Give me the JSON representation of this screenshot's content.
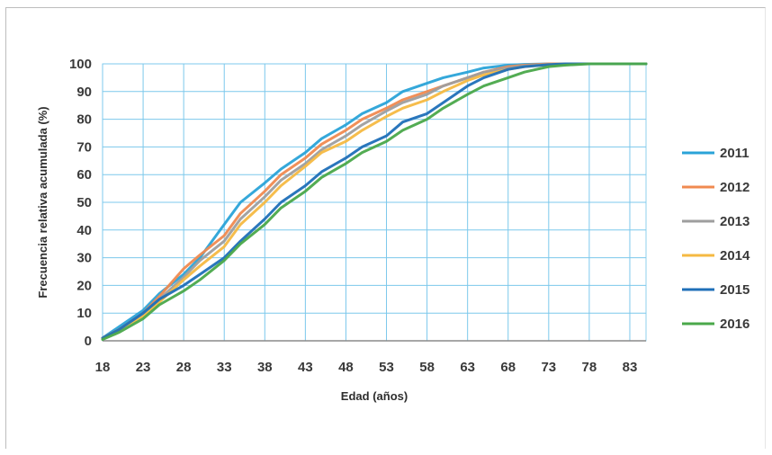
{
  "chart_data": {
    "type": "line",
    "xlabel": "Edad (años)",
    "ylabel": "Frecuencia relativa acumulada (%)",
    "xlim": [
      18,
      85
    ],
    "ylim": [
      0,
      100
    ],
    "x_ticks": [
      18,
      23,
      28,
      33,
      38,
      43,
      48,
      53,
      58,
      63,
      68,
      73,
      78,
      83
    ],
    "y_ticks": [
      0,
      10,
      20,
      30,
      40,
      50,
      60,
      70,
      80,
      90,
      100
    ],
    "grid": true,
    "legend_position": "right",
    "x": [
      18,
      20,
      23,
      25,
      28,
      30,
      33,
      35,
      38,
      40,
      43,
      45,
      48,
      50,
      53,
      55,
      58,
      60,
      63,
      65,
      68,
      70,
      73,
      75,
      78,
      80,
      83,
      85
    ],
    "series": [
      {
        "name": "2011",
        "color": "#2aa3d8",
        "values": [
          1,
          5,
          11,
          17,
          24,
          30,
          42,
          50,
          57,
          62,
          68,
          73,
          78,
          82,
          86,
          90,
          93,
          95,
          97,
          98.5,
          99.5,
          99.8,
          100,
          100,
          100,
          100,
          100,
          100
        ]
      },
      {
        "name": "2012",
        "color": "#f08a50",
        "values": [
          1,
          4,
          10,
          16,
          26,
          31,
          38,
          46,
          54,
          60,
          66,
          71,
          76,
          80,
          84,
          87,
          90,
          92,
          95,
          97,
          99,
          99.5,
          100,
          100,
          100,
          100,
          100,
          100
        ]
      },
      {
        "name": "2013",
        "color": "#9e9e9e",
        "values": [
          1,
          4,
          10,
          15,
          23,
          29,
          36,
          44,
          52,
          58,
          64,
          69,
          74,
          78,
          83,
          86,
          89,
          92,
          95,
          97,
          98.5,
          99.3,
          99.8,
          100,
          100,
          100,
          100,
          100
        ]
      },
      {
        "name": "2014",
        "color": "#f5b942",
        "values": [
          1,
          4,
          9,
          14,
          22,
          27,
          34,
          42,
          50,
          56,
          63,
          68,
          72,
          76,
          81,
          84,
          87,
          90,
          94,
          96,
          98,
          99,
          99.7,
          100,
          100,
          100,
          100,
          100
        ]
      },
      {
        "name": "2015",
        "color": "#1f6fb8",
        "values": [
          1,
          4,
          10,
          15,
          20,
          24,
          30,
          36,
          44,
          50,
          56,
          61,
          66,
          70,
          74,
          79,
          82,
          86,
          92,
          95,
          98,
          99,
          99.7,
          100,
          100,
          100,
          100,
          100
        ]
      },
      {
        "name": "2016",
        "color": "#4aa84a",
        "values": [
          0.5,
          3,
          8,
          13,
          18,
          22,
          29,
          35,
          42,
          48,
          54,
          59,
          64,
          68,
          72,
          76,
          80,
          84,
          89,
          92,
          95,
          97,
          99,
          99.5,
          100,
          100,
          100,
          100
        ]
      }
    ]
  }
}
